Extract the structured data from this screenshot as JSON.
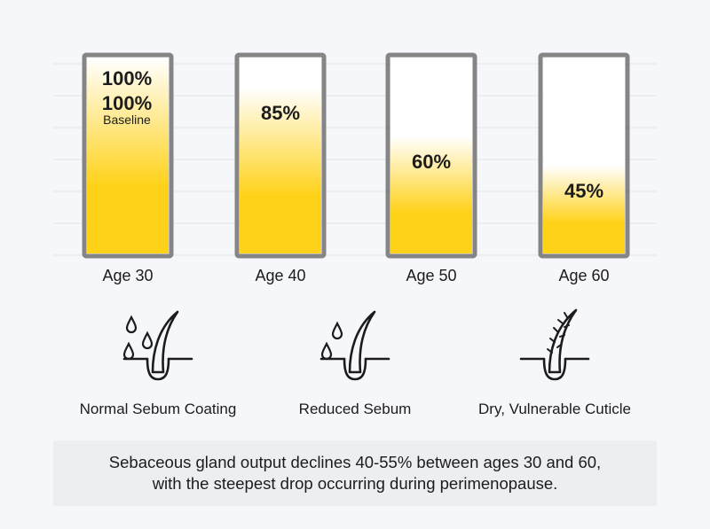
{
  "chart_data": {
    "type": "bar",
    "categories": [
      "Age 30",
      "Age 40",
      "Age 50",
      "Age 60"
    ],
    "values": [
      100,
      85,
      60,
      45
    ],
    "value_labels": [
      "100%",
      "85%",
      "60%",
      "45%"
    ],
    "first_bar_extra": {
      "value_label": "100%",
      "sublabel": "Baseline"
    },
    "ylim": [
      0,
      100
    ],
    "grid": true,
    "colors": {
      "fill": "#ffd21a",
      "fill_top": "#ffffff",
      "frame": "#858585",
      "grid": "#e2e4e9"
    }
  },
  "icons": [
    {
      "name": "hair-follicle-with-droplets-icon",
      "caption": "Normal Sebum Coating"
    },
    {
      "name": "hair-follicle-fewer-droplets-icon",
      "caption": "Reduced Sebum"
    },
    {
      "name": "damaged-hair-follicle-icon",
      "caption": "Dry, Vulnerable Cuticle"
    }
  ],
  "note": {
    "line1": "Sebaceous gland output declines 40-55% between ages 30 and 60,",
    "line2": "with the steepest drop occurring during perimenopause."
  }
}
